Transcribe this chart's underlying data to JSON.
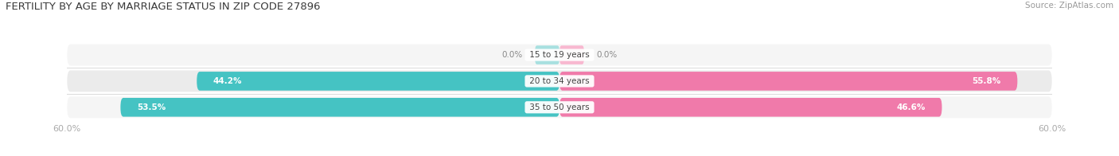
{
  "title": "FERTILITY BY AGE BY MARRIAGE STATUS IN ZIP CODE 27896",
  "source": "Source: ZipAtlas.com",
  "categories": [
    "15 to 19 years",
    "20 to 34 years",
    "35 to 50 years"
  ],
  "married_values": [
    0.0,
    44.2,
    53.5
  ],
  "unmarried_values": [
    0.0,
    55.8,
    46.6
  ],
  "max_val": 60.0,
  "married_color": "#45c3c3",
  "unmarried_color": "#f07aaa",
  "married_color_light": "#a8e0e0",
  "unmarried_color_light": "#f8b8d0",
  "row_bg_odd": "#f5f5f5",
  "row_bg_even": "#ebebeb",
  "label_bg": "#ffffff",
  "label_color": "#555555",
  "title_color": "#3a3a3a",
  "value_color_on_bar": "#ffffff",
  "value_color_zero": "#888888",
  "axis_label_color": "#aaaaaa",
  "source_color": "#999999",
  "figsize": [
    14.06,
    1.96
  ],
  "dpi": 100
}
